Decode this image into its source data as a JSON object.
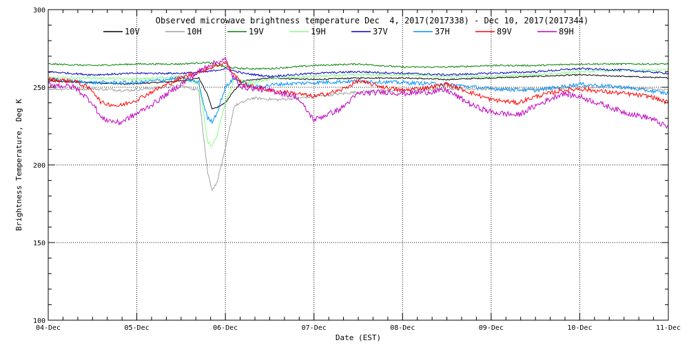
{
  "chart_data": {
    "type": "line",
    "title": "Observed microwave brightness temperature Dec  4, 2017(2017338) - Dec 10, 2017(2017344)",
    "xlabel": "Date (EST)",
    "ylabel": "Brightness Temperature, Deg K",
    "xlim": [
      0,
      7
    ],
    "ylim": [
      100,
      300
    ],
    "x_ticks": [
      {
        "value": 0,
        "label": "04-Dec"
      },
      {
        "value": 1,
        "label": "05-Dec"
      },
      {
        "value": 2,
        "label": "06-Dec"
      },
      {
        "value": 3,
        "label": "07-Dec"
      },
      {
        "value": 4,
        "label": "08-Dec"
      },
      {
        "value": 5,
        "label": "09-Dec"
      },
      {
        "value": 6,
        "label": "10-Dec"
      },
      {
        "value": 7,
        "label": "11-Dec"
      }
    ],
    "y_ticks": [
      {
        "value": 100,
        "label": "100"
      },
      {
        "value": 150,
        "label": "150"
      },
      {
        "value": 200,
        "label": "200"
      },
      {
        "value": 250,
        "label": "250"
      },
      {
        "value": 300,
        "label": "300"
      }
    ],
    "gridlines": true,
    "legend_position": "top",
    "series": [
      {
        "name": "10V",
        "color": "#000000",
        "x": [
          0,
          0.5,
          0.9,
          1.5,
          1.7,
          1.8,
          1.85,
          1.9,
          2.0,
          2.1,
          2.2,
          2.5,
          3.0,
          3.5,
          4.0,
          4.5,
          5.0,
          5.5,
          6.0,
          6.5,
          7.0
        ],
        "y": [
          254,
          253,
          252,
          254,
          256,
          245,
          236,
          237,
          240,
          248,
          254,
          256,
          255,
          256,
          256,
          255,
          256,
          257,
          258,
          257,
          256
        ]
      },
      {
        "name": "10H",
        "color": "#a0a0a0",
        "x": [
          0,
          0.5,
          0.9,
          1.5,
          1.7,
          1.75,
          1.8,
          1.85,
          1.9,
          2.0,
          2.1,
          2.3,
          2.6,
          3.0,
          3.5,
          4.0,
          4.5,
          5.0,
          5.5,
          6.0,
          6.5,
          7.0
        ],
        "y": [
          249,
          249,
          248,
          251,
          248,
          220,
          195,
          184,
          188,
          210,
          238,
          243,
          242,
          244,
          247,
          248,
          249,
          249,
          249,
          250,
          250,
          248
        ]
      },
      {
        "name": "19V",
        "color": "#008000",
        "x": [
          0,
          0.5,
          1.0,
          1.5,
          1.8,
          2.0,
          2.2,
          2.5,
          3.0,
          3.5,
          4.0,
          4.5,
          5.0,
          5.5,
          6.0,
          6.5,
          7.0
        ],
        "y": [
          265,
          264,
          265,
          265,
          266,
          263,
          262,
          262,
          264,
          265,
          263,
          263,
          264,
          264,
          265,
          265,
          265
        ]
      },
      {
        "name": "19H",
        "color": "#80ff80",
        "x": [
          0,
          0.5,
          1.0,
          1.5,
          1.7,
          1.75,
          1.8,
          1.85,
          1.9,
          2.0,
          2.1,
          2.3,
          2.6,
          3.0,
          3.5,
          4.0,
          4.5,
          5.0,
          5.5,
          6.0,
          6.5,
          7.0
        ],
        "y": [
          256,
          256,
          255,
          257,
          252,
          235,
          215,
          212,
          218,
          240,
          255,
          253,
          256,
          257,
          258,
          258,
          257,
          257,
          258,
          260,
          261,
          261
        ]
      },
      {
        "name": "37V",
        "color": "#0000c0",
        "x": [
          0,
          0.5,
          1.0,
          1.5,
          1.8,
          2.0,
          2.2,
          2.5,
          3.0,
          3.5,
          4.0,
          4.5,
          5.0,
          5.5,
          6.0,
          6.5,
          7.0
        ],
        "y": [
          260,
          258,
          259,
          259,
          260,
          262,
          259,
          257,
          259,
          260,
          259,
          258,
          259,
          260,
          262,
          261,
          259
        ]
      },
      {
        "name": "37H",
        "color": "#0090ff",
        "x": [
          0,
          0.5,
          1.0,
          1.5,
          1.7,
          1.75,
          1.8,
          1.85,
          1.9,
          2.0,
          2.1,
          2.3,
          2.6,
          3.0,
          3.5,
          4.0,
          4.5,
          5.0,
          5.5,
          6.0,
          6.5,
          7.0
        ],
        "y": [
          255,
          253,
          253,
          256,
          253,
          240,
          230,
          228,
          233,
          250,
          256,
          250,
          252,
          253,
          254,
          253,
          252,
          249,
          248,
          252,
          250,
          246
        ]
      },
      {
        "name": "89V",
        "color": "#ff0000",
        "x": [
          0,
          0.3,
          0.5,
          0.6,
          0.8,
          1.0,
          1.2,
          1.5,
          1.8,
          2.0,
          2.1,
          2.2,
          2.5,
          2.8,
          3.0,
          3.3,
          3.5,
          3.8,
          4.0,
          4.3,
          4.5,
          4.8,
          5.0,
          5.3,
          5.5,
          5.8,
          6.0,
          6.3,
          6.5,
          6.8,
          7.0
        ],
        "y": [
          255,
          254,
          248,
          240,
          238,
          242,
          248,
          256,
          262,
          266,
          258,
          252,
          248,
          246,
          244,
          248,
          254,
          250,
          248,
          250,
          252,
          246,
          242,
          240,
          244,
          248,
          249,
          247,
          246,
          244,
          240
        ]
      },
      {
        "name": "89H",
        "color": "#c000c0",
        "x": [
          0,
          0.3,
          0.5,
          0.6,
          0.8,
          1.0,
          1.2,
          1.5,
          1.8,
          2.0,
          2.1,
          2.2,
          2.5,
          2.8,
          3.0,
          3.3,
          3.5,
          3.8,
          4.0,
          4.3,
          4.5,
          4.8,
          5.0,
          5.3,
          5.5,
          5.8,
          6.0,
          6.3,
          6.5,
          6.8,
          7.0
        ],
        "y": [
          252,
          250,
          240,
          230,
          227,
          233,
          240,
          252,
          264,
          268,
          255,
          250,
          248,
          244,
          229,
          236,
          246,
          247,
          246,
          247,
          248,
          238,
          234,
          232,
          238,
          246,
          244,
          238,
          234,
          230,
          224
        ]
      }
    ]
  }
}
